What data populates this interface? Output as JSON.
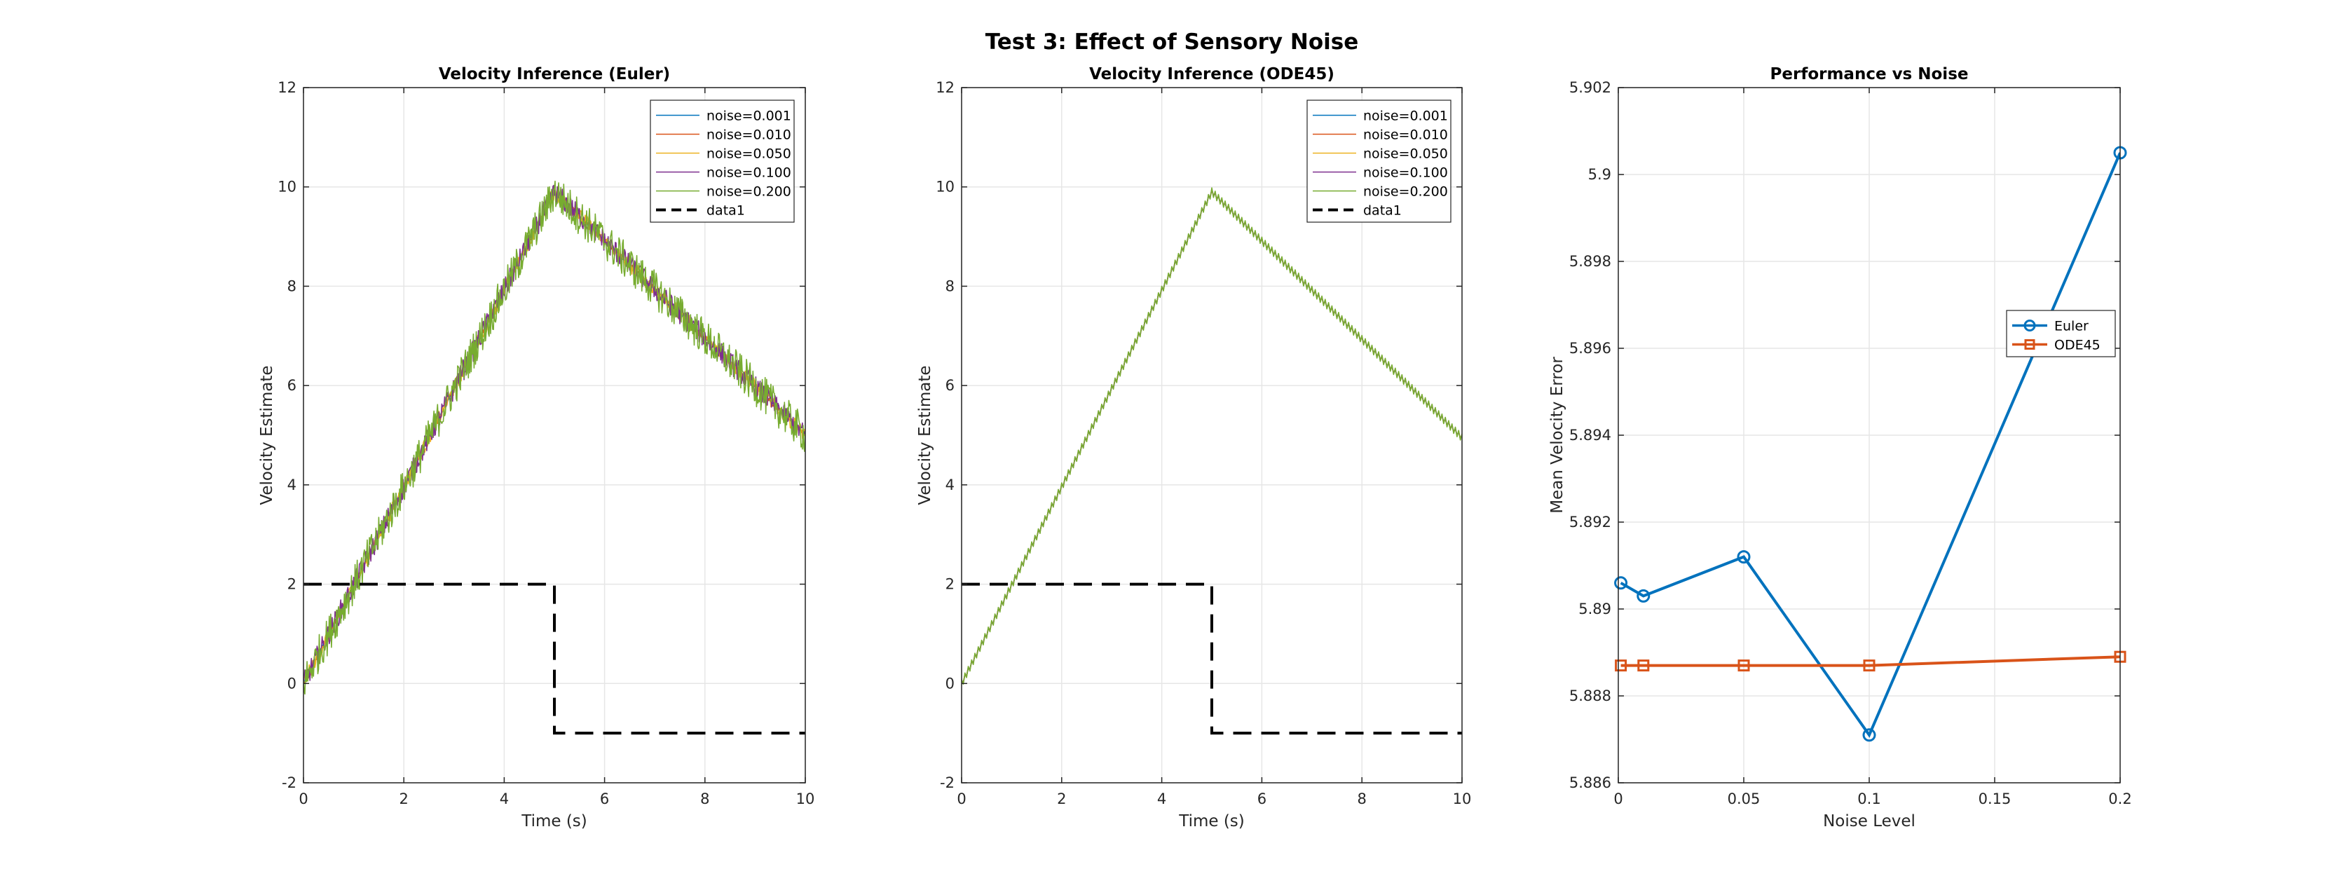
{
  "figure": {
    "title": "Test 3: Effect of Sensory Noise"
  },
  "chart_data": [
    {
      "type": "line",
      "title": "Velocity Inference (Euler)",
      "xlabel": "Time (s)",
      "ylabel": "Velocity Estimate",
      "xlim": [
        0,
        10
      ],
      "ylim": [
        -2,
        12
      ],
      "xticks": [
        0,
        2,
        4,
        6,
        8,
        10
      ],
      "yticks": [
        -2,
        0,
        2,
        4,
        6,
        8,
        10,
        12
      ],
      "grid": true,
      "legend_position": "top-right",
      "series": [
        {
          "name": "noise=0.001",
          "color": "#0072BD",
          "x": [
            0,
            5,
            10
          ],
          "y": [
            0,
            9.9,
            5.0
          ],
          "noise_amplitude": 0.02
        },
        {
          "name": "noise=0.010",
          "color": "#D95319",
          "x": [
            0,
            5,
            10
          ],
          "y": [
            0,
            9.9,
            5.0
          ],
          "noise_amplitude": 0.06
        },
        {
          "name": "noise=0.050",
          "color": "#EDB120",
          "x": [
            0,
            5,
            10
          ],
          "y": [
            0,
            9.9,
            5.0
          ],
          "noise_amplitude": 0.15
        },
        {
          "name": "noise=0.100",
          "color": "#7E2F8E",
          "x": [
            0,
            5,
            10
          ],
          "y": [
            0,
            9.9,
            5.0
          ],
          "noise_amplitude": 0.22
        },
        {
          "name": "noise=0.200",
          "color": "#77AC30",
          "x": [
            0,
            5,
            10
          ],
          "y": [
            0,
            9.9,
            5.0
          ],
          "noise_amplitude": 0.38
        },
        {
          "name": "data1",
          "color": "#000000",
          "dashed": true,
          "x": [
            0,
            5,
            5,
            10
          ],
          "y": [
            2,
            2,
            -1,
            -1
          ]
        }
      ]
    },
    {
      "type": "line",
      "title": "Velocity Inference (ODE45)",
      "xlabel": "Time (s)",
      "ylabel": "Velocity Estimate",
      "xlim": [
        0,
        10
      ],
      "ylim": [
        -2,
        12
      ],
      "xticks": [
        0,
        2,
        4,
        6,
        8,
        10
      ],
      "yticks": [
        -2,
        0,
        2,
        4,
        6,
        8,
        10,
        12
      ],
      "grid": true,
      "legend_position": "top-right",
      "series": [
        {
          "name": "noise=0.001",
          "color": "#0072BD",
          "x": [
            0,
            5,
            10
          ],
          "y": [
            0,
            9.9,
            4.95
          ],
          "noise_amplitude": 0.03
        },
        {
          "name": "noise=0.010",
          "color": "#D95319",
          "x": [
            0,
            5,
            10
          ],
          "y": [
            0,
            9.9,
            4.95
          ],
          "noise_amplitude": 0.04
        },
        {
          "name": "noise=0.050",
          "color": "#EDB120",
          "x": [
            0,
            5,
            10
          ],
          "y": [
            0,
            9.9,
            4.95
          ],
          "noise_amplitude": 0.05
        },
        {
          "name": "noise=0.100",
          "color": "#7E2F8E",
          "x": [
            0,
            5,
            10
          ],
          "y": [
            0,
            9.9,
            4.95
          ],
          "noise_amplitude": 0.06
        },
        {
          "name": "noise=0.200",
          "color": "#77AC30",
          "x": [
            0,
            5,
            10
          ],
          "y": [
            0,
            9.9,
            4.95
          ],
          "noise_amplitude": 0.08
        },
        {
          "name": "data1",
          "color": "#000000",
          "dashed": true,
          "x": [
            0,
            5,
            5,
            10
          ],
          "y": [
            2,
            2,
            -1,
            -1
          ]
        }
      ]
    },
    {
      "type": "line",
      "title": "Performance vs Noise",
      "xlabel": "Noise Level",
      "ylabel": "Mean Velocity Error",
      "xlim": [
        0,
        0.2
      ],
      "ylim": [
        5.886,
        5.902
      ],
      "xticks": [
        0,
        0.05,
        0.1,
        0.15,
        0.2
      ],
      "xtick_labels": [
        "0",
        "0.05",
        "0.1",
        "0.15",
        "0.2"
      ],
      "yticks": [
        5.886,
        5.888,
        5.89,
        5.892,
        5.894,
        5.896,
        5.898,
        5.9,
        5.902
      ],
      "ytick_labels": [
        "5.886",
        "5.888",
        "5.89",
        "5.892",
        "5.894",
        "5.896",
        "5.898",
        "5.9",
        "5.902"
      ],
      "grid": true,
      "legend_position": "right",
      "series": [
        {
          "name": "Euler",
          "color": "#0072BD",
          "marker": "circle",
          "x": [
            0.001,
            0.01,
            0.05,
            0.1,
            0.2
          ],
          "y": [
            5.8906,
            5.8903,
            5.8912,
            5.8871,
            5.9005
          ]
        },
        {
          "name": "ODE45",
          "color": "#D95319",
          "marker": "square",
          "x": [
            0.001,
            0.01,
            0.05,
            0.1,
            0.2
          ],
          "y": [
            5.8887,
            5.8887,
            5.8887,
            5.8887,
            5.8889
          ]
        }
      ]
    }
  ]
}
